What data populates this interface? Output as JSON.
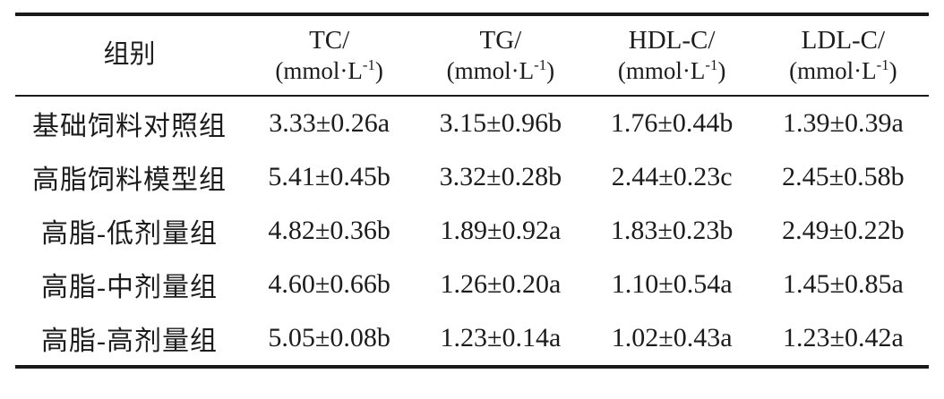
{
  "page": {
    "background_color": "#ffffff",
    "text_color": "#1c1c1c",
    "rule_color": "#1a1a1a"
  },
  "table": {
    "group_header": "组别",
    "columns": [
      {
        "name": "TC/",
        "unit_prefix": "(mmol·L",
        "unit_sup": "-1",
        "unit_suffix": ")"
      },
      {
        "name": "TG/",
        "unit_prefix": "(mmol·L",
        "unit_sup": "-1",
        "unit_suffix": ")"
      },
      {
        "name": "HDL-C/",
        "unit_prefix": "(mmol·L",
        "unit_sup": "-1",
        "unit_suffix": ")"
      },
      {
        "name": "LDL-C/",
        "unit_prefix": "(mmol·L",
        "unit_sup": "-1",
        "unit_suffix": ")"
      }
    ],
    "rows": [
      {
        "group": "基础饲料对照组",
        "values": [
          "3.33±0.26a",
          "3.15±0.96b",
          "1.76±0.44b",
          "1.39±0.39a"
        ]
      },
      {
        "group": "高脂饲料模型组",
        "values": [
          "5.41±0.45b",
          "3.32±0.28b",
          "2.44±0.23c",
          "2.45±0.58b"
        ]
      },
      {
        "group": "高脂-低剂量组",
        "values": [
          "4.82±0.36b",
          "1.89±0.92a",
          "1.83±0.23b",
          "2.49±0.22b"
        ]
      },
      {
        "group": "高脂-中剂量组",
        "values": [
          "4.60±0.66b",
          "1.26±0.20a",
          "1.10±0.54a",
          "1.45±0.85a"
        ]
      },
      {
        "group": "高脂-高剂量组",
        "values": [
          "5.05±0.08b",
          "1.23±0.14a",
          "1.02±0.43a",
          "1.23±0.42a"
        ]
      }
    ]
  }
}
